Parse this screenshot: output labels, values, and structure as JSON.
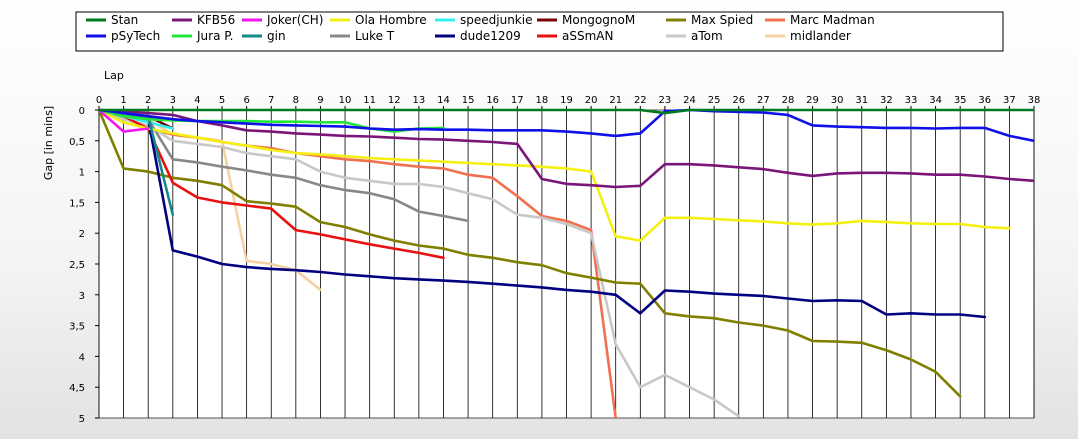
{
  "chart_data": {
    "type": "line",
    "title": "",
    "xlabel": "Lap",
    "ylabel": "Gap [in mins]",
    "xlim": [
      0,
      38
    ],
    "ylim": [
      0,
      5
    ],
    "y_inverted": true,
    "grid": "vertical",
    "legend_position": "top",
    "x_ticks": [
      0,
      1,
      2,
      3,
      4,
      5,
      6,
      7,
      8,
      9,
      10,
      11,
      12,
      13,
      14,
      15,
      16,
      17,
      18,
      19,
      20,
      21,
      22,
      23,
      24,
      25,
      26,
      27,
      28,
      29,
      30,
      31,
      32,
      33,
      34,
      35,
      36,
      37,
      38
    ],
    "y_ticks": [
      {
        "value": 0,
        "label": "0"
      },
      {
        "value": 0.5,
        "label": "0,5"
      },
      {
        "value": 1,
        "label": "1"
      },
      {
        "value": 1.5,
        "label": "1,5"
      },
      {
        "value": 2,
        "label": "2"
      },
      {
        "value": 2.5,
        "label": "2,5"
      },
      {
        "value": 3,
        "label": "3"
      },
      {
        "value": 3.5,
        "label": "3,5"
      },
      {
        "value": 4,
        "label": "4"
      },
      {
        "value": 4.5,
        "label": "4,5"
      },
      {
        "value": 5,
        "label": "5"
      }
    ],
    "series": [
      {
        "name": "Stan",
        "color": "#007a1f",
        "x": [
          0,
          1,
          2,
          3,
          4,
          5,
          6,
          7,
          8,
          9,
          10,
          11,
          12,
          13,
          14,
          15,
          16,
          17,
          18,
          19,
          20,
          21,
          22,
          23,
          24,
          25,
          26,
          27,
          28,
          29,
          30,
          31,
          32,
          33,
          34,
          35,
          36,
          37,
          38
        ],
        "values": [
          0,
          0,
          0,
          0,
          0,
          0,
          0,
          0,
          0,
          0,
          0,
          0,
          0,
          0,
          0,
          0,
          0,
          0,
          0,
          0,
          0,
          0,
          0,
          0.05,
          0,
          0,
          0,
          0,
          0,
          0,
          0,
          0,
          0,
          0,
          0,
          0,
          0,
          0,
          0
        ]
      },
      {
        "name": "pSyTech",
        "color": "#1010e8",
        "x": [
          0,
          1,
          2,
          3,
          4,
          5,
          6,
          7,
          8,
          9,
          10,
          11,
          12,
          13,
          14,
          15,
          16,
          17,
          18,
          19,
          20,
          21,
          22,
          23,
          24,
          25,
          26,
          27,
          28,
          29,
          30,
          31,
          32,
          33,
          34,
          35,
          36,
          37,
          38
        ],
        "values": [
          0,
          0.05,
          0.1,
          0.15,
          0.18,
          0.2,
          0.22,
          0.24,
          0.25,
          0.26,
          0.27,
          0.3,
          0.32,
          0.31,
          0.32,
          0.32,
          0.33,
          0.33,
          0.33,
          0.35,
          0.38,
          0.42,
          0.38,
          0.02,
          0,
          0.02,
          0.03,
          0.04,
          0.08,
          0.25,
          0.27,
          0.28,
          0.29,
          0.29,
          0.3,
          0.29,
          0.29,
          0.42,
          0.5
        ]
      },
      {
        "name": "KFB56",
        "color": "#7a157a",
        "x": [
          0,
          1,
          2,
          3,
          4,
          5,
          6,
          7,
          8,
          9,
          10,
          11,
          12,
          13,
          14,
          15,
          16,
          17,
          18,
          19,
          20,
          21,
          22,
          23,
          24,
          25,
          26,
          27,
          28,
          29,
          30,
          31,
          32,
          33,
          34,
          35,
          36,
          37,
          38
        ],
        "values": [
          0,
          0.02,
          0.05,
          0.08,
          0.18,
          0.25,
          0.33,
          0.35,
          0.38,
          0.4,
          0.42,
          0.43,
          0.45,
          0.47,
          0.48,
          0.5,
          0.52,
          0.55,
          1.12,
          1.2,
          1.22,
          1.25,
          1.23,
          0.88,
          0.88,
          0.9,
          0.93,
          0.96,
          1.02,
          1.07,
          1.03,
          1.02,
          1.02,
          1.03,
          1.05,
          1.05,
          1.08,
          1.12,
          1.15
        ]
      },
      {
        "name": "Jura P.",
        "color": "#22e63a",
        "x": [
          0,
          1,
          2,
          3,
          4,
          5,
          6,
          7,
          8,
          9,
          10,
          11,
          12,
          13,
          14
        ],
        "values": [
          0,
          0.1,
          0.15,
          0.17,
          0.18,
          0.18,
          0.18,
          0.19,
          0.19,
          0.2,
          0.2,
          0.3,
          0.35,
          0.3,
          0.29
        ]
      },
      {
        "name": "Joker(CH)",
        "color": "#f016f0",
        "x": [
          0,
          1,
          2
        ],
        "values": [
          0,
          0.35,
          0.3
        ]
      },
      {
        "name": "gin",
        "color": "#148a8a",
        "x": [
          0,
          1,
          2,
          3
        ],
        "values": [
          0,
          0.1,
          0.1,
          1.7
        ]
      },
      {
        "name": "Ola Hombre",
        "color": "#f5f010",
        "x": [
          0,
          1,
          2,
          3,
          4,
          5,
          6,
          7,
          8,
          9,
          10,
          11,
          12,
          13,
          14,
          15,
          16,
          17,
          18,
          19,
          20,
          21,
          22,
          23,
          24,
          25,
          26,
          27,
          28,
          29,
          30,
          31,
          32,
          33,
          34,
          35,
          36,
          37
        ],
        "values": [
          0,
          0.2,
          0.3,
          0.38,
          0.45,
          0.52,
          0.58,
          0.65,
          0.7,
          0.72,
          0.75,
          0.78,
          0.8,
          0.82,
          0.84,
          0.86,
          0.88,
          0.9,
          0.92,
          0.95,
          1,
          2.05,
          2.12,
          1.75,
          1.75,
          1.77,
          1.79,
          1.81,
          1.84,
          1.86,
          1.84,
          1.8,
          1.82,
          1.84,
          1.85,
          1.85,
          1.9,
          1.92
        ]
      },
      {
        "name": "Luke T",
        "color": "#888888",
        "x": [
          0,
          1,
          2,
          3,
          4,
          5,
          6,
          7,
          8,
          9,
          10,
          11,
          12,
          13,
          14,
          15
        ],
        "values": [
          0,
          0.1,
          0.15,
          0.8,
          0.85,
          0.92,
          0.98,
          1.05,
          1.1,
          1.22,
          1.3,
          1.35,
          1.45,
          1.65,
          1.72,
          1.8
        ]
      },
      {
        "name": "speedjunkie",
        "color": "#30f0f0",
        "x": [
          0,
          1,
          2,
          3
        ],
        "values": [
          0,
          0.1,
          0.2,
          0.3
        ]
      },
      {
        "name": "dude1209",
        "color": "#000080",
        "x": [
          0,
          1,
          2,
          3,
          4,
          5,
          6,
          7,
          8,
          9,
          10,
          11,
          12,
          13,
          14,
          15,
          16,
          17,
          18,
          19,
          20,
          21,
          22,
          23,
          24,
          25,
          26,
          27,
          28,
          29,
          30,
          31,
          32,
          33,
          34,
          35,
          36
        ],
        "values": [
          0,
          0.1,
          0.15,
          2.28,
          2.38,
          2.5,
          2.55,
          2.58,
          2.6,
          2.63,
          2.67,
          2.7,
          2.73,
          2.75,
          2.77,
          2.79,
          2.82,
          2.85,
          2.88,
          2.92,
          2.95,
          3,
          3.3,
          2.93,
          2.95,
          2.98,
          3,
          3.02,
          3.06,
          3.1,
          3.09,
          3.1,
          3.32,
          3.3,
          3.32,
          3.32,
          3.36
        ]
      },
      {
        "name": "MongognoM",
        "color": "#7a0000",
        "x": [
          0,
          1,
          2,
          3
        ],
        "values": [
          0,
          0.05,
          0.1,
          0.3
        ]
      },
      {
        "name": "aSSmAN",
        "color": "#e81010",
        "x": [
          0,
          1,
          2,
          3,
          4,
          5,
          6,
          7,
          8,
          9,
          10,
          11,
          12,
          13,
          14
        ],
        "values": [
          0,
          0.1,
          0.3,
          1.18,
          1.42,
          1.5,
          1.55,
          1.6,
          1.95,
          2.02,
          2.1,
          2.18,
          2.25,
          2.32,
          2.4
        ]
      },
      {
        "name": "Max Spied",
        "color": "#808000",
        "x": [
          0,
          1,
          2,
          3,
          4,
          5,
          6,
          7,
          8,
          9,
          10,
          11,
          12,
          13,
          14,
          15,
          16,
          17,
          18,
          19,
          20,
          21,
          22,
          23,
          24,
          25,
          26,
          27,
          28,
          29,
          30,
          31,
          32,
          33,
          34,
          35
        ],
        "values": [
          0,
          0.95,
          1,
          1.1,
          1.15,
          1.22,
          1.48,
          1.52,
          1.57,
          1.82,
          1.9,
          2.02,
          2.12,
          2.2,
          2.25,
          2.35,
          2.4,
          2.47,
          2.52,
          2.65,
          2.72,
          2.8,
          2.82,
          3.3,
          3.35,
          3.38,
          3.45,
          3.5,
          3.58,
          3.75,
          3.76,
          3.78,
          3.9,
          4.05,
          4.25,
          4.65
        ]
      },
      {
        "name": "aTom",
        "color": "#c8c8c8",
        "x": [
          0,
          1,
          2,
          3,
          4,
          5,
          6,
          7,
          8,
          9,
          10,
          11,
          12,
          13,
          14,
          15,
          16,
          17,
          18,
          19,
          20,
          21,
          22,
          23,
          24,
          25,
          26
        ],
        "values": [
          0,
          0.15,
          0.25,
          0.5,
          0.55,
          0.6,
          0.7,
          0.75,
          0.8,
          1,
          1.1,
          1.15,
          1.2,
          1.2,
          1.25,
          1.35,
          1.45,
          1.7,
          1.75,
          1.85,
          2,
          3.8,
          4.5,
          4.3,
          4.5,
          4.7,
          4.97
        ]
      },
      {
        "name": "Marc Madman",
        "color": "#f07050",
        "x": [
          0,
          1,
          2,
          3,
          4,
          5,
          6,
          7,
          8,
          9,
          10,
          11,
          12,
          13,
          14,
          15,
          16,
          17,
          18,
          19,
          20,
          21
        ],
        "values": [
          0,
          0.2,
          0.3,
          0.4,
          0.45,
          0.52,
          0.58,
          0.62,
          0.7,
          0.75,
          0.8,
          0.83,
          0.88,
          0.92,
          0.95,
          1.05,
          1.1,
          1.4,
          1.72,
          1.8,
          1.95,
          5
        ]
      },
      {
        "name": "midlander",
        "color": "#f5d0a0",
        "x": [
          0,
          1,
          2,
          3,
          4,
          5,
          6,
          7,
          8,
          9
        ],
        "values": [
          0,
          0.1,
          0.15,
          0.4,
          0.45,
          0.5,
          2.45,
          2.5,
          2.6,
          2.92
        ]
      }
    ]
  }
}
